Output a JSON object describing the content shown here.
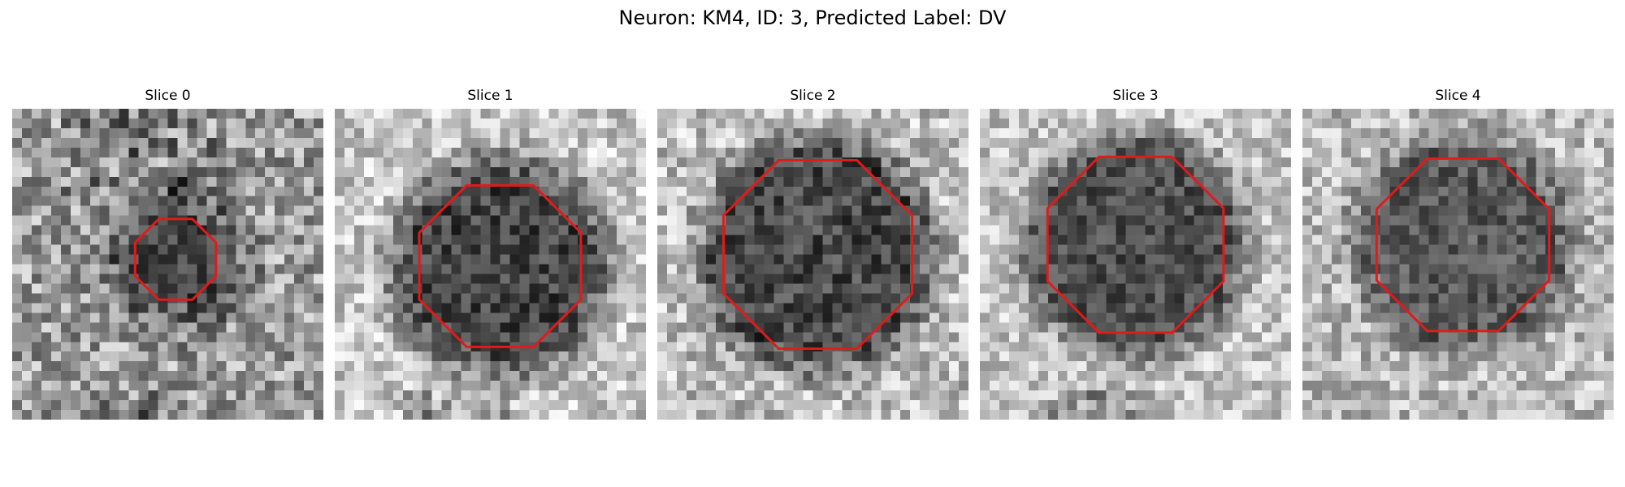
{
  "figure": {
    "title": "Neuron: KM4, ID: 3, Predicted Label: DV"
  },
  "colors": {
    "contour": "#e21a1a",
    "background": "#ffffff"
  },
  "panels": [
    {
      "title": "Slice 0"
    },
    {
      "title": "Slice 1"
    },
    {
      "title": "Slice 2"
    },
    {
      "title": "Slice 3"
    },
    {
      "title": "Slice 4"
    }
  ]
}
